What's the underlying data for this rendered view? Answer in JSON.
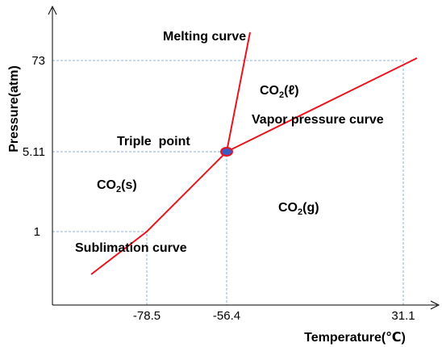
{
  "axes": {
    "y_label": "Pressure(atm)",
    "x_label": "Temperature(℃)",
    "y_ticks": [
      "73",
      "5.11",
      "1"
    ],
    "x_ticks": [
      "-78.5",
      "-56.4",
      "31.1"
    ]
  },
  "curves": [
    "Melting curve",
    "Vapor pressure curve",
    "Sublimation curve"
  ],
  "triple_point": "Triple  point",
  "regions": [
    {
      "formula": "CO",
      "subscript": "2",
      "state": "(ℓ)"
    },
    {
      "formula": "CO",
      "subscript": "2",
      "state": "(s)"
    },
    {
      "formula": "CO",
      "subscript": "2",
      "state": "(g)"
    }
  ]
}
